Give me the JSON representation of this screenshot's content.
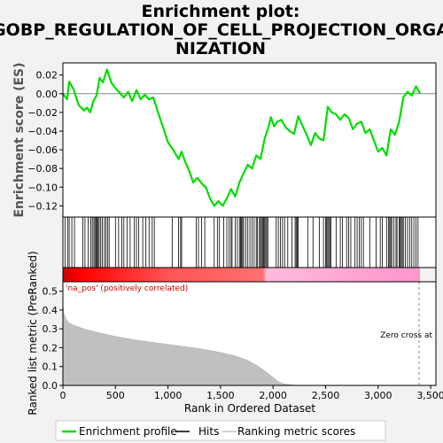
{
  "title_line1": "Enrichment plot:",
  "title_line2": "GOBP_REGULATION_OF_CELL_PROJECTION_ORGA",
  "title_line3": "NIZATION",
  "chart_data": {
    "type": "line",
    "ylabel_top": "Enrichment score (ES)",
    "ylabel_bottom": "Ranked list metric (PreRanked)",
    "xlabel": "Rank in Ordered Dataset",
    "positive_label": "'na_pos' (positively correlated)",
    "zero_cross_label": "Zero cross at",
    "zero_cross_x": 3390,
    "n_genes": 3400,
    "xlim": [
      0,
      3550
    ],
    "x_ticks": [
      0,
      500,
      1000,
      1500,
      2000,
      2500,
      3000,
      3500
    ],
    "x_tick_labels": [
      "0",
      "500",
      "1,000",
      "1,500",
      "2,000",
      "2,500",
      "3,000",
      "3,500"
    ],
    "es_ylim": [
      -0.132,
      0.033
    ],
    "es_ticks": [
      0.02,
      0.0,
      -0.02,
      -0.04,
      -0.06,
      -0.08,
      -0.1,
      -0.12
    ],
    "es_tick_labels": [
      "0.02",
      "0.00",
      "−0.02",
      "−0.04",
      "−0.06",
      "−0.08",
      "−0.10",
      "−0.12"
    ],
    "metric_ylim": [
      0,
      0.55
    ],
    "metric_ticks": [
      0.0,
      0.1,
      0.2,
      0.3,
      0.4,
      0.5
    ],
    "metric_tick_labels": [
      "0.0",
      "0.1",
      "0.2",
      "0.3",
      "0.4",
      "0.5"
    ],
    "series": [
      {
        "name": "Enrichment profile",
        "color": "#00dd00",
        "x": [
          0,
          40,
          60,
          100,
          150,
          200,
          230,
          260,
          290,
          320,
          350,
          380,
          420,
          460,
          500,
          540,
          580,
          620,
          660,
          700,
          740,
          780,
          820,
          860,
          900,
          950,
          1000,
          1050,
          1100,
          1130,
          1160,
          1200,
          1240,
          1280,
          1320,
          1360,
          1400,
          1440,
          1480,
          1520,
          1560,
          1600,
          1640,
          1680,
          1720,
          1760,
          1800,
          1840,
          1880,
          1920,
          1950,
          1980,
          2010,
          2040,
          2080,
          2120,
          2160,
          2200,
          2240,
          2280,
          2320,
          2360,
          2400,
          2440,
          2480,
          2520,
          2560,
          2600,
          2640,
          2680,
          2720,
          2760,
          2800,
          2840,
          2880,
          2920,
          2960,
          3000,
          3040,
          3080,
          3120,
          3160,
          3200,
          3240,
          3280,
          3320,
          3360,
          3400
        ],
        "y": [
          0.0,
          -0.006,
          0.013,
          0.005,
          -0.012,
          -0.018,
          -0.015,
          -0.02,
          -0.008,
          -0.002,
          0.017,
          0.012,
          0.026,
          0.012,
          0.006,
          0.001,
          -0.004,
          0.002,
          -0.008,
          0.004,
          -0.006,
          -0.001,
          -0.006,
          -0.004,
          -0.018,
          -0.035,
          -0.052,
          -0.06,
          -0.07,
          -0.062,
          -0.072,
          -0.082,
          -0.095,
          -0.09,
          -0.096,
          -0.1,
          -0.112,
          -0.12,
          -0.115,
          -0.12,
          -0.112,
          -0.102,
          -0.11,
          -0.095,
          -0.085,
          -0.076,
          -0.08,
          -0.066,
          -0.07,
          -0.048,
          -0.038,
          -0.025,
          -0.035,
          -0.03,
          -0.028,
          -0.036,
          -0.04,
          -0.043,
          -0.024,
          -0.034,
          -0.044,
          -0.055,
          -0.042,
          -0.048,
          -0.05,
          -0.014,
          -0.02,
          -0.022,
          -0.028,
          -0.022,
          -0.026,
          -0.038,
          -0.032,
          -0.03,
          -0.042,
          -0.038,
          -0.05,
          -0.062,
          -0.058,
          -0.066,
          -0.038,
          -0.044,
          -0.03,
          -0.004,
          0.002,
          -0.002,
          0.008,
          0.0
        ]
      },
      {
        "name": "Ranking metric scores",
        "color": "#c0c0c0",
        "x": [
          0,
          10,
          30,
          60,
          100,
          200,
          300,
          500,
          700,
          900,
          1100,
          1300,
          1500,
          1650,
          1750,
          1850,
          1950,
          2050,
          2100,
          2200,
          2300,
          3400
        ],
        "y": [
          0.43,
          0.38,
          0.35,
          0.33,
          0.32,
          0.3,
          0.285,
          0.26,
          0.24,
          0.225,
          0.21,
          0.195,
          0.175,
          0.155,
          0.135,
          0.105,
          0.065,
          0.02,
          0.008,
          0.002,
          0.0,
          0.0
        ]
      }
    ],
    "hits": [
      20,
      45,
      60,
      85,
      110,
      190,
      210,
      240,
      265,
      280,
      295,
      305,
      315,
      325,
      335,
      345,
      360,
      375,
      395,
      410,
      425,
      440,
      500,
      530,
      560,
      580,
      610,
      640,
      680,
      700,
      720,
      760,
      790,
      820,
      850,
      870,
      1040,
      1100,
      1120,
      1130,
      1270,
      1290,
      1320,
      1350,
      1440,
      1470,
      1490,
      1530,
      1560,
      1580,
      1600,
      1610,
      1640,
      1660,
      1680,
      1690,
      1700,
      1710,
      1720,
      1740,
      1760,
      1780,
      1800,
      1820,
      1840,
      1850,
      1870,
      1880,
      1890,
      1900,
      1910,
      1920,
      1930,
      1940,
      1950,
      2030,
      2050,
      2070,
      2090,
      2110,
      2140,
      2180,
      2210,
      2220,
      2230,
      2240,
      2330,
      2380,
      2440,
      2480,
      2500,
      2510,
      2520,
      2530,
      2540,
      2550,
      2600,
      2640,
      2660,
      2700,
      2720,
      2740,
      2780,
      2800,
      2820,
      2840,
      2860,
      2920,
      2980,
      3020,
      3040,
      3080,
      3100,
      3110,
      3120,
      3130,
      3150,
      3170,
      3180,
      3200,
      3210,
      3220,
      3230,
      3240,
      3260,
      3280,
      3300,
      3320,
      3340,
      3360,
      3380
    ],
    "legend": [
      "Enrichment profile",
      "Hits",
      "Ranking metric scores"
    ],
    "colors": {
      "es_line": "#00dd00",
      "zero_line": "#888888",
      "hit_line": "#000000",
      "metric_fill": "#c0c0c0",
      "pos_label": "#cc0000",
      "band_red": "#ff0000",
      "band_pink": "#ff88cc"
    }
  }
}
